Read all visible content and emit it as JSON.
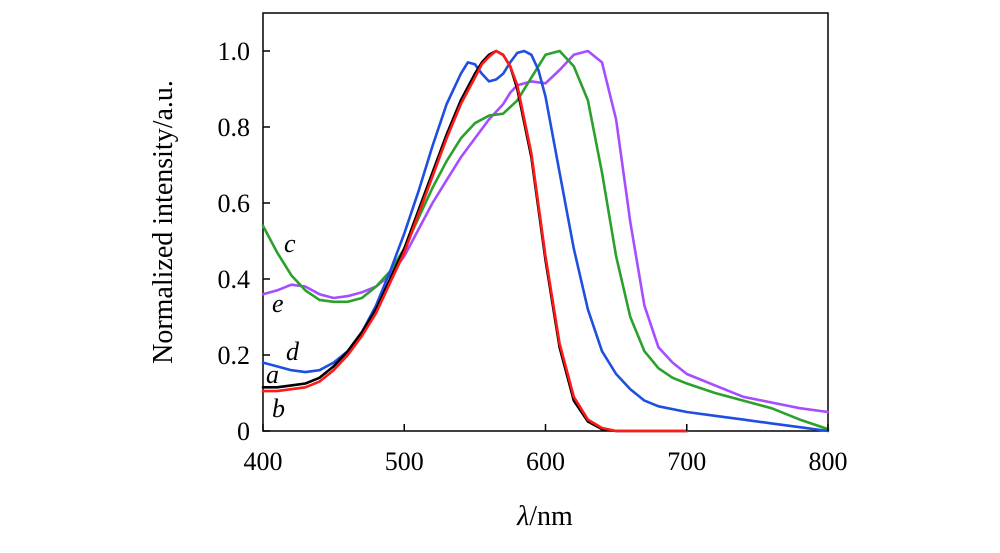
{
  "chart_data": {
    "type": "line",
    "title": "",
    "xlabel_italic": "λ",
    "xlabel_rest": "/nm",
    "ylabel": "Normalized intensity/a.u.",
    "xlim": [
      400,
      800
    ],
    "ylim": [
      0,
      1.1
    ],
    "x_ticks": [
      400,
      500,
      600,
      700,
      800
    ],
    "x_tick_labels": [
      "400",
      "500",
      "600",
      "700",
      "800"
    ],
    "y_ticks": [
      0,
      0.2,
      0.4,
      0.6,
      0.8,
      1.0
    ],
    "y_tick_labels": [
      "0",
      "0.2",
      "0.4",
      "0.6",
      "0.8",
      "1.0"
    ],
    "grid": false,
    "series": [
      {
        "name": "e",
        "color": "#a64dff",
        "x": [
          400,
          410,
          420,
          430,
          440,
          450,
          460,
          470,
          480,
          490,
          500,
          510,
          520,
          530,
          540,
          550,
          560,
          570,
          575,
          580,
          590,
          600,
          610,
          620,
          630,
          640,
          650,
          660,
          670,
          680,
          690,
          700,
          720,
          740,
          760,
          780,
          800
        ],
        "values": [
          0.36,
          0.37,
          0.385,
          0.38,
          0.36,
          0.35,
          0.355,
          0.365,
          0.38,
          0.41,
          0.46,
          0.53,
          0.6,
          0.66,
          0.72,
          0.77,
          0.82,
          0.86,
          0.89,
          0.91,
          0.92,
          0.915,
          0.95,
          0.99,
          1.0,
          0.97,
          0.82,
          0.55,
          0.33,
          0.22,
          0.18,
          0.15,
          0.12,
          0.09,
          0.075,
          0.06,
          0.05
        ]
      },
      {
        "name": "c",
        "color": "#2ca02c",
        "x": [
          400,
          410,
          420,
          430,
          440,
          450,
          460,
          470,
          480,
          490,
          500,
          510,
          520,
          530,
          540,
          550,
          560,
          570,
          580,
          590,
          600,
          610,
          620,
          630,
          640,
          650,
          660,
          670,
          680,
          690,
          700,
          720,
          740,
          760,
          780,
          800
        ],
        "values": [
          0.54,
          0.47,
          0.41,
          0.37,
          0.345,
          0.34,
          0.34,
          0.35,
          0.38,
          0.42,
          0.48,
          0.56,
          0.64,
          0.71,
          0.77,
          0.81,
          0.83,
          0.835,
          0.87,
          0.93,
          0.99,
          1.0,
          0.96,
          0.87,
          0.68,
          0.46,
          0.3,
          0.21,
          0.165,
          0.14,
          0.125,
          0.1,
          0.08,
          0.06,
          0.03,
          0.005
        ]
      },
      {
        "name": "d",
        "color": "#1f4fe0",
        "x": [
          400,
          410,
          420,
          430,
          440,
          450,
          460,
          470,
          480,
          490,
          500,
          510,
          520,
          530,
          540,
          545,
          550,
          555,
          560,
          565,
          570,
          575,
          580,
          585,
          590,
          595,
          600,
          610,
          620,
          630,
          640,
          650,
          660,
          670,
          680,
          700,
          720,
          740,
          760,
          780,
          800
        ],
        "values": [
          0.18,
          0.17,
          0.16,
          0.155,
          0.16,
          0.18,
          0.21,
          0.26,
          0.33,
          0.42,
          0.52,
          0.63,
          0.75,
          0.86,
          0.94,
          0.97,
          0.965,
          0.94,
          0.92,
          0.925,
          0.94,
          0.97,
          0.995,
          1.0,
          0.99,
          0.95,
          0.88,
          0.68,
          0.48,
          0.32,
          0.21,
          0.15,
          0.11,
          0.08,
          0.065,
          0.05,
          0.04,
          0.03,
          0.02,
          0.01,
          0.0
        ]
      },
      {
        "name": "a",
        "color": "#000000",
        "x": [
          400,
          410,
          420,
          430,
          440,
          450,
          460,
          470,
          480,
          490,
          500,
          510,
          520,
          530,
          540,
          550,
          555,
          560,
          565,
          570,
          575,
          580,
          590,
          600,
          610,
          620,
          630,
          640,
          650,
          660,
          680,
          700
        ],
        "values": [
          0.115,
          0.115,
          0.12,
          0.125,
          0.14,
          0.17,
          0.21,
          0.26,
          0.32,
          0.4,
          0.48,
          0.58,
          0.68,
          0.78,
          0.87,
          0.94,
          0.97,
          0.99,
          1.0,
          0.99,
          0.96,
          0.9,
          0.72,
          0.45,
          0.22,
          0.08,
          0.025,
          0.005,
          0.0,
          0.0,
          0.0,
          0.0
        ]
      },
      {
        "name": "b",
        "color": "#ff1a1a",
        "x": [
          400,
          410,
          420,
          430,
          440,
          450,
          460,
          470,
          480,
          490,
          500,
          510,
          520,
          530,
          540,
          550,
          555,
          560,
          565,
          570,
          575,
          580,
          590,
          600,
          610,
          620,
          630,
          640,
          650,
          660,
          680,
          700
        ],
        "values": [
          0.105,
          0.105,
          0.11,
          0.115,
          0.13,
          0.16,
          0.2,
          0.25,
          0.31,
          0.39,
          0.47,
          0.57,
          0.67,
          0.77,
          0.86,
          0.93,
          0.965,
          0.985,
          1.0,
          0.99,
          0.96,
          0.91,
          0.73,
          0.46,
          0.23,
          0.09,
          0.03,
          0.008,
          0.0,
          0.0,
          0.0,
          0.0
        ]
      }
    ],
    "annotations": [
      {
        "text": "c",
        "series": "c"
      },
      {
        "text": "e",
        "series": "e"
      },
      {
        "text": "d",
        "series": "d"
      },
      {
        "text": "a",
        "series": "a"
      },
      {
        "text": "b",
        "series": "b"
      }
    ]
  }
}
